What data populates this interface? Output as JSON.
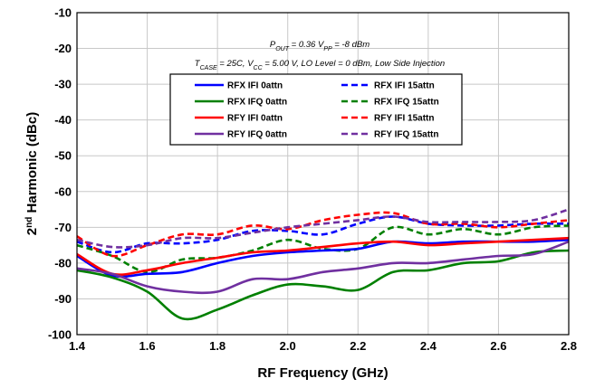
{
  "chart_data": {
    "type": "line",
    "xlabel": "RF Frequency (GHz)",
    "ylabel": {
      "prefix": "2",
      "sup": "nd",
      "rest": " Harmonic (dBc)"
    },
    "xlim": [
      1.4,
      2.8
    ],
    "ylim": [
      -100,
      -10
    ],
    "xticks": [
      1.4,
      1.6,
      1.8,
      2.0,
      2.2,
      2.4,
      2.6,
      2.8
    ],
    "xtick_labels": [
      "1.4",
      "1.6",
      "1.8",
      "2.0",
      "2.2",
      "2.4",
      "2.6",
      "2.8"
    ],
    "yticks": [
      -100,
      -90,
      -80,
      -70,
      -60,
      -50,
      -40,
      -30,
      -20,
      -10
    ],
    "ytick_labels": [
      "-100",
      "-90",
      "-80",
      "-70",
      "-60",
      "-50",
      "-40",
      "-30",
      "-20",
      "-10"
    ],
    "grid": true,
    "annotation_line1": "P_OUT = 0.36 V_PP = -8 dBm",
    "annotation_line2": "T_CASE = 25C,  V_CC = 5.00 V,  LO Level = 0 dBm,  Low Side Injection",
    "legend_position": "upper-center",
    "x": [
      1.4,
      1.5,
      1.6,
      1.7,
      1.8,
      1.9,
      2.0,
      2.1,
      2.2,
      2.3,
      2.4,
      2.5,
      2.6,
      2.7,
      2.8
    ],
    "series": [
      {
        "name": "RFX IFI 0attn",
        "color": "#0000ff",
        "dash": "solid",
        "values": [
          -78,
          -83.5,
          -83,
          -82.5,
          -80,
          -78,
          -77,
          -76.5,
          -76,
          -74,
          -74.5,
          -74,
          -74,
          -74,
          -73.5
        ]
      },
      {
        "name": "RFX IFI 15attn",
        "color": "#0000ff",
        "dash": "dashed",
        "values": [
          -74,
          -77,
          -74.5,
          -74.5,
          -73.5,
          -71,
          -71,
          -72,
          -69,
          -67,
          -69,
          -69.5,
          -69.5,
          -69,
          -69
        ]
      },
      {
        "name": "RFX IFQ 0attn",
        "color": "#008000",
        "dash": "solid",
        "values": [
          -82,
          -84,
          -88,
          -95.5,
          -93,
          -89,
          -86,
          -86.5,
          -87.5,
          -82.5,
          -82,
          -80,
          -79.5,
          -77,
          -76.5
        ]
      },
      {
        "name": "RFX IFQ 15attn",
        "color": "#008000",
        "dash": "dashed",
        "values": [
          -75,
          -78,
          -82.5,
          -79,
          -78.5,
          -76.5,
          -73.5,
          -76,
          -76,
          -70,
          -72,
          -70.5,
          -72,
          -70,
          -69.5
        ]
      },
      {
        "name": "RFY IFI 0attn",
        "color": "#ff0000",
        "dash": "solid",
        "values": [
          -77.5,
          -83,
          -82,
          -80,
          -78.5,
          -77,
          -76.5,
          -75.5,
          -74.5,
          -74,
          -75,
          -74.5,
          -74,
          -73.5,
          -73
        ]
      },
      {
        "name": "RFY IFI 15attn",
        "color": "#ff0000",
        "dash": "dashed",
        "values": [
          -72.5,
          -78,
          -75,
          -72,
          -72,
          -69.5,
          -70.5,
          -68,
          -66.5,
          -66,
          -69,
          -69,
          -70,
          -69,
          -68
        ]
      },
      {
        "name": "RFY IFQ 0attn",
        "color": "#7030a0",
        "dash": "solid",
        "values": [
          -81.5,
          -83,
          -86.5,
          -88,
          -88,
          -84.5,
          -84.5,
          -82.5,
          -81.5,
          -80,
          -80,
          -79,
          -78,
          -77.5,
          -74
        ]
      },
      {
        "name": "RFY IFQ 15attn",
        "color": "#7030a0",
        "dash": "dashed",
        "values": [
          -73.5,
          -75.5,
          -75,
          -73,
          -73,
          -71.5,
          -70,
          -69,
          -68,
          -67,
          -68.5,
          -68.5,
          -68.5,
          -68,
          -65
        ]
      }
    ]
  }
}
